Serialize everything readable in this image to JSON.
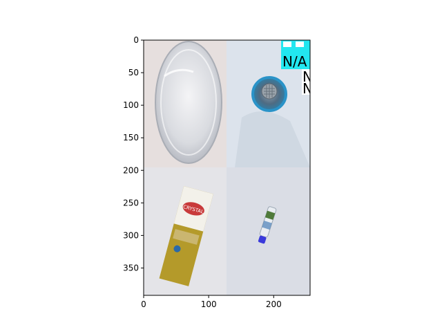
{
  "chart_data": {
    "type": "image",
    "title": "",
    "xlabel": "",
    "ylabel": "",
    "xlim": [
      0,
      256
    ],
    "ylim": [
      392,
      0
    ],
    "xticks": [
      0,
      100,
      200
    ],
    "yticks": [
      0,
      50,
      100,
      150,
      200,
      250,
      300,
      350
    ],
    "grid": false,
    "legend": "none",
    "panels": [
      {
        "name": "glass-dish",
        "bg": "#e6e0df",
        "content": "clear round glass dish"
      },
      {
        "name": "sink-drain",
        "bg": "#dfe6ee",
        "content": "metal drain with blue ring"
      },
      {
        "name": "juice-carton",
        "bg": "#e2e2e6",
        "content": "yellow carton with Crystal label"
      },
      {
        "name": "small-bottle",
        "bg": "#d9dde6",
        "content": "small plastic bottle with blue cap"
      }
    ],
    "annotations": [
      {
        "text": "N/A",
        "bg": "#22e7f0"
      },
      {
        "text": "N",
        "bg": "#ffffff"
      },
      {
        "text": "N",
        "bg": "#ffffff"
      }
    ],
    "carton_label": "CRYSTAL"
  }
}
